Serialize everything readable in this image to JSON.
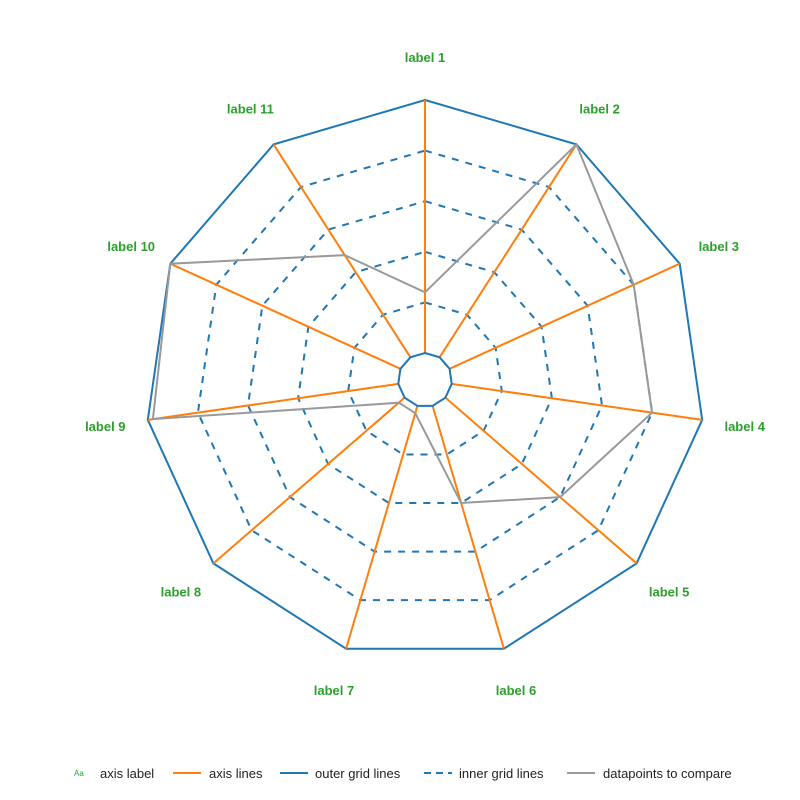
{
  "colors": {
    "axis_label": "#2ca02c",
    "axis_lines": "#ff7f0e",
    "outer_grid": "#1f77b4",
    "inner_grid": "#1f77b4",
    "compare": "#999999",
    "legend_text": "#222222"
  },
  "chart_data": {
    "type": "radar",
    "axes": [
      "label 1",
      "label 2",
      "label 3",
      "label 4",
      "label 5",
      "label 6",
      "label 7",
      "label 8",
      "label 9",
      "label 10",
      "label 11"
    ],
    "range": [
      0,
      5
    ],
    "grid_levels": [
      1,
      2,
      3,
      4,
      5
    ],
    "center_hole": true,
    "series": [
      {
        "values": [
          1.2,
          5.0,
          4.0,
          4.0,
          3.0,
          2.0,
          0.15,
          0.15,
          4.9,
          5.0,
          2.4
        ]
      }
    ]
  },
  "legend": {
    "items": [
      {
        "key": "axis_label",
        "icon_text": "Aa",
        "label": "axis label"
      },
      {
        "key": "axis_lines",
        "label": "axis lines"
      },
      {
        "key": "outer_grid",
        "label": "outer grid lines"
      },
      {
        "key": "inner_grid",
        "label": "inner grid lines"
      },
      {
        "key": "compare",
        "label": "datapoints to compare"
      }
    ]
  }
}
